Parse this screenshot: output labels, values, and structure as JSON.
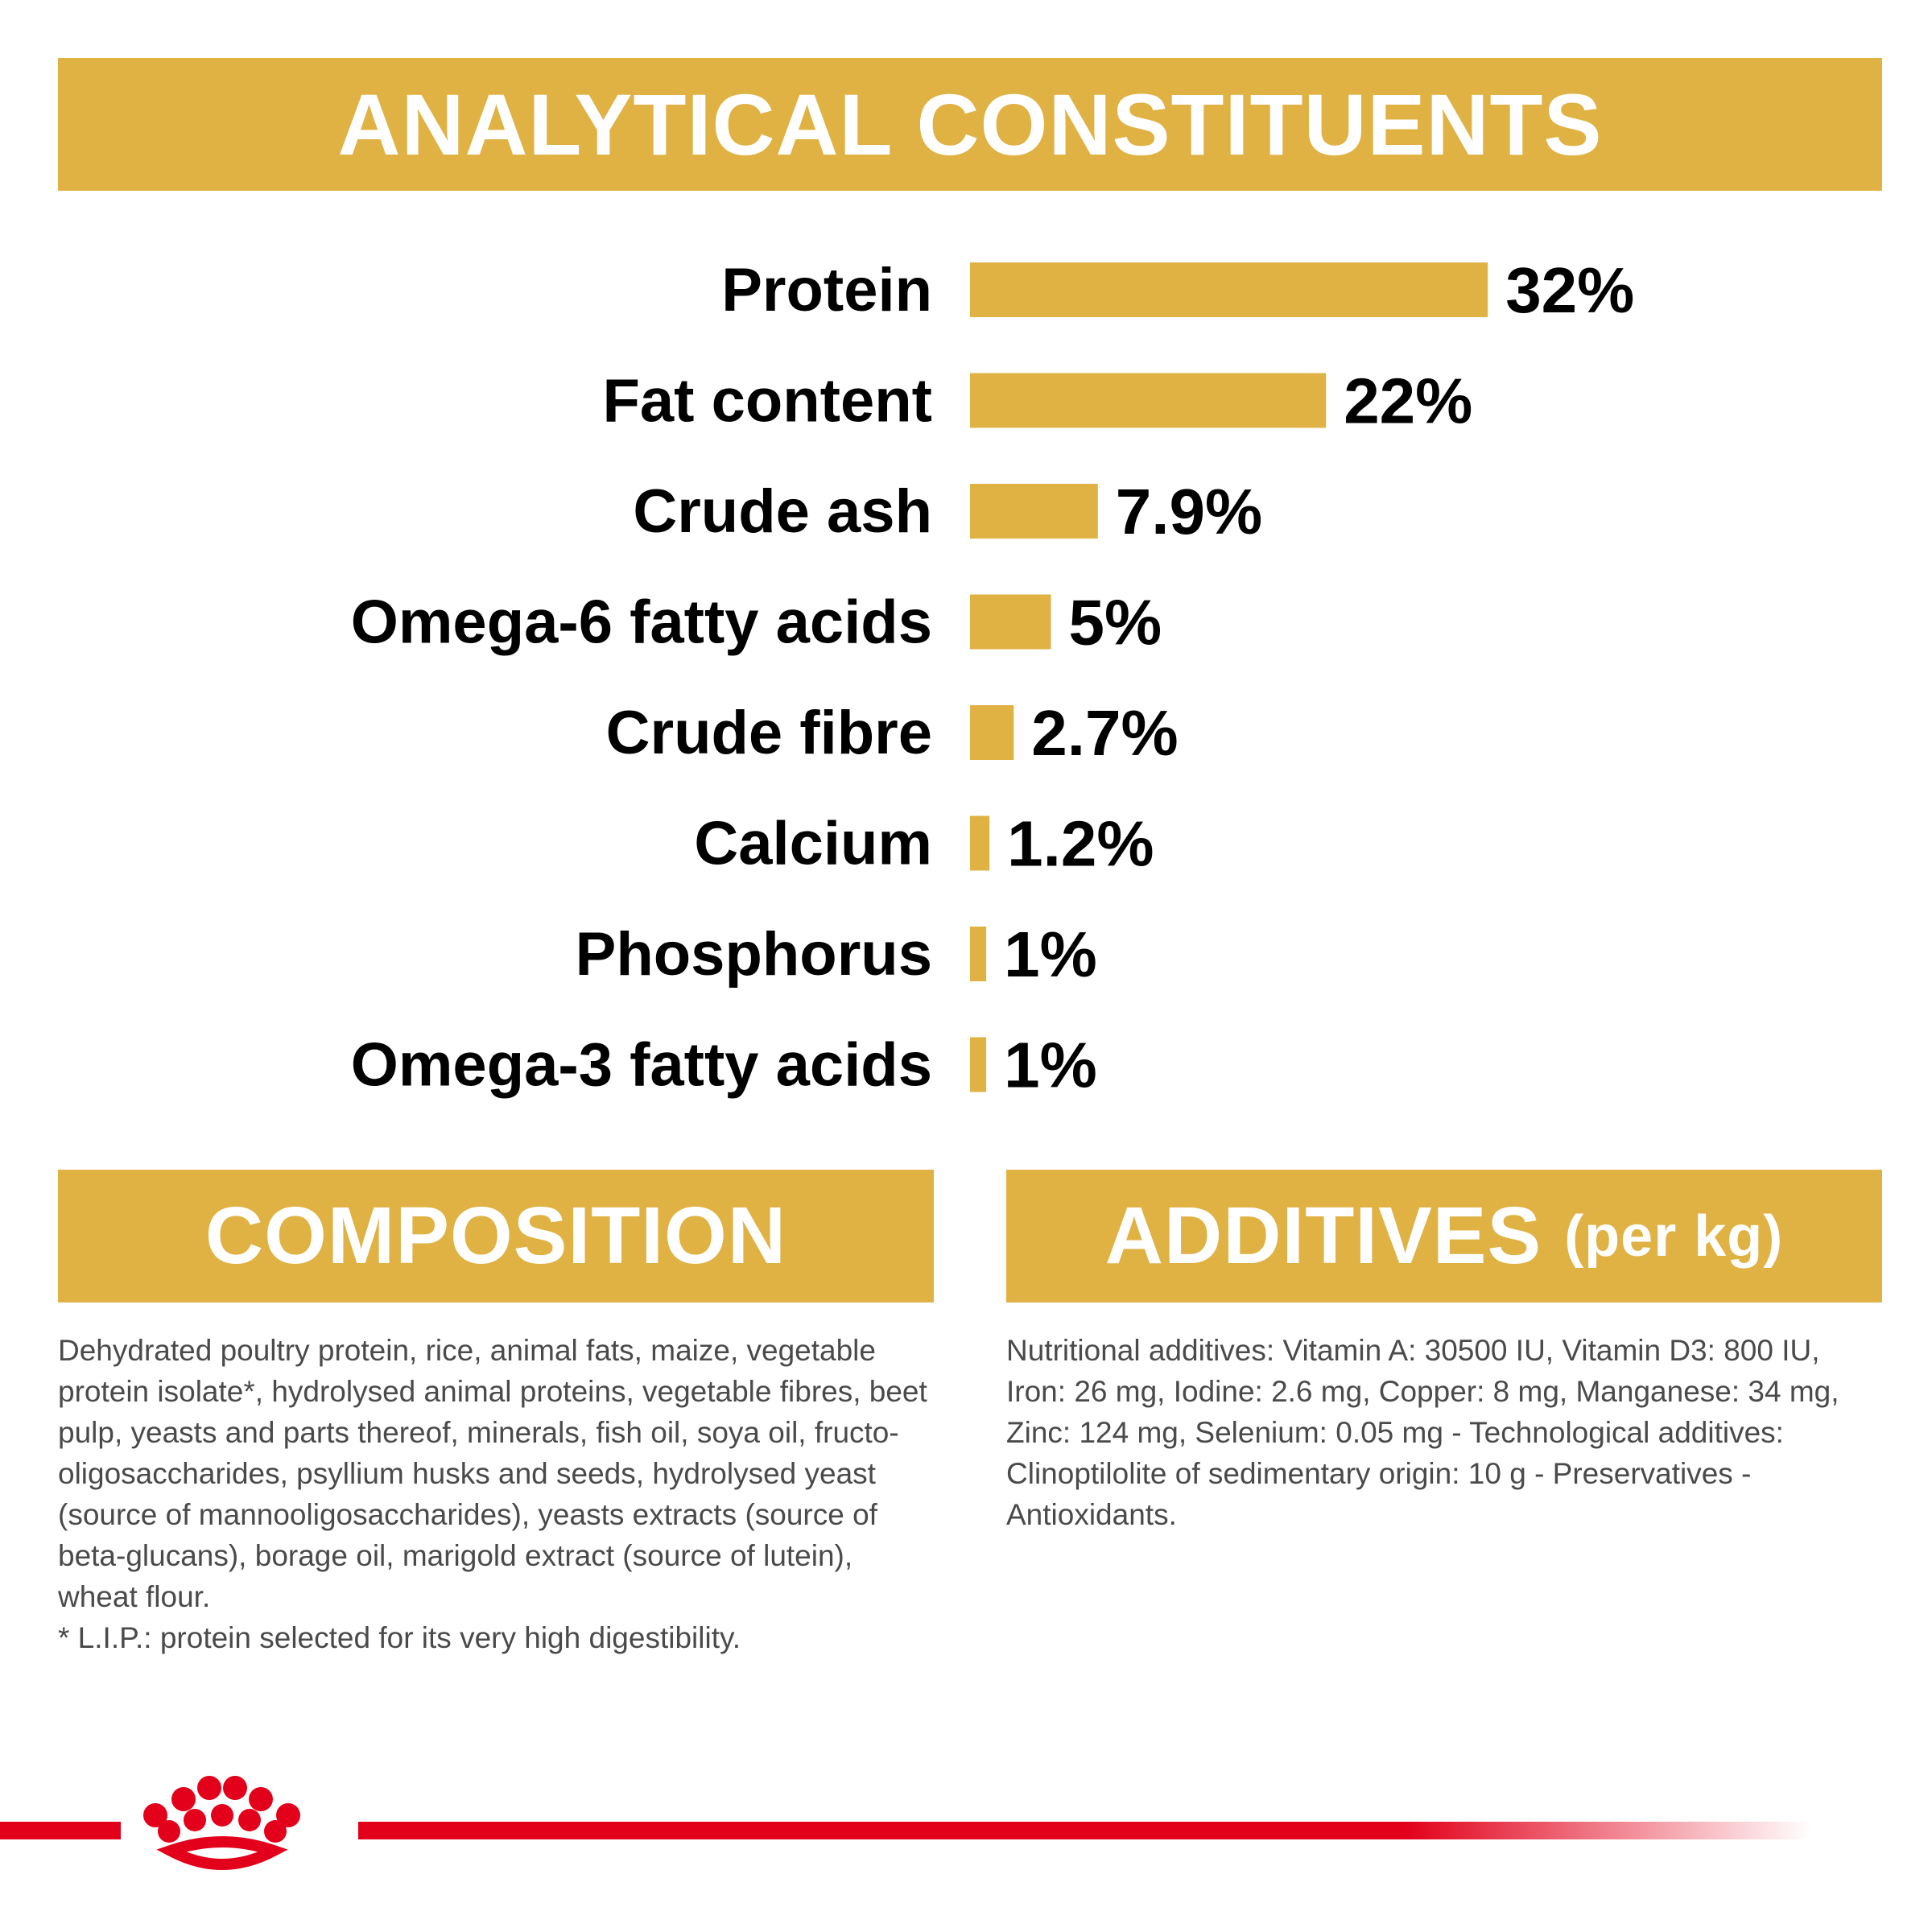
{
  "headings": {
    "analytical": "ANALYTICAL CONSTITUENTS",
    "composition": "COMPOSITION",
    "additives": "ADDITIVES",
    "additives_suffix": "(per kg)"
  },
  "chart_data": {
    "type": "bar",
    "orientation": "horizontal",
    "title": "ANALYTICAL CONSTITUENTS",
    "categories": [
      "Protein",
      "Fat content",
      "Crude ash",
      "Omega-6 fatty acids",
      "Crude fibre",
      "Calcium",
      "Phosphorus",
      "Omega-3 fatty acids"
    ],
    "values": [
      32,
      22,
      7.9,
      5,
      2.7,
      1.2,
      1,
      1
    ],
    "value_labels": [
      "32%",
      "22%",
      "7.9%",
      "5%",
      "2.7%",
      "1.2%",
      "1%",
      "1%"
    ],
    "unit": "%",
    "color": "#e0b244",
    "grid": false,
    "legend": "none"
  },
  "composition_text": "Dehydrated poultry protein, rice, animal fats, maize, vegetable\nprotein isolate*, hydrolysed animal proteins, vegetable fibres, beet\npulp, yeasts and parts thereof, minerals, fish oil, soya oil, fructo-\noligosaccharides, psyllium husks and seeds, hydrolysed yeast\n(source of mannooligosaccharides), yeasts extracts (source of\nbeta-glucans), borage oil, marigold extract (source of lutein),\nwheat flour.\n* L.I.P.: protein selected for its very high digestibility.",
  "additives_text": "Nutritional additives: Vitamin A: 30500 IU, Vitamin D3: 800 IU,\nIron: 26 mg, Iodine: 2.6 mg, Copper: 8 mg, Manganese: 34 mg,\nZinc: 124 mg, Selenium: 0.05 mg - Technological additives:\nClinoptilolite of sedimentary origin: 10 g - Preservatives -\nAntioxidants.",
  "colors": {
    "accent": "#e0b244",
    "brand_red": "#e2001a",
    "body_text": "#4a4a4a"
  },
  "logo": {
    "icon": "crown-icon"
  }
}
